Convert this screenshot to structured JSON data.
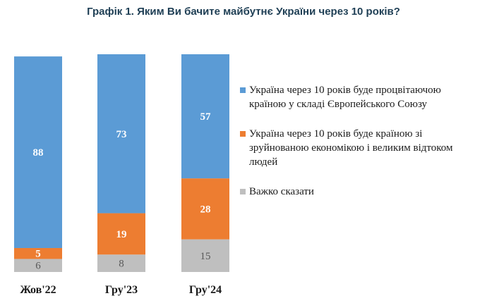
{
  "chart_data": {
    "type": "bar",
    "stacked": true,
    "title": "Графік 1. Яким Ви бачите майбутнє України через 10 років?",
    "categories": [
      "Жов'22",
      "Гру'23",
      "Гру'24"
    ],
    "series": [
      {
        "name": "Україна через 10 років буде процвітаючою країною у складі Європейського Союзу",
        "color": "#5b9bd5",
        "label_color": "#ffffff",
        "values": [
          88,
          73,
          57
        ]
      },
      {
        "name": "Україна через 10 років буде країною зі зруйнованою економікою і великим відтоком людей",
        "color": "#ed7d31",
        "label_color": "#ffffff",
        "values": [
          5,
          19,
          28
        ]
      },
      {
        "name": "Важко сказати",
        "color": "#bfbfbf",
        "label_color": "#595959",
        "values": [
          6,
          8,
          15
        ]
      }
    ],
    "ylim": [
      0,
      100
    ],
    "grid": false,
    "legend_position": "right"
  }
}
